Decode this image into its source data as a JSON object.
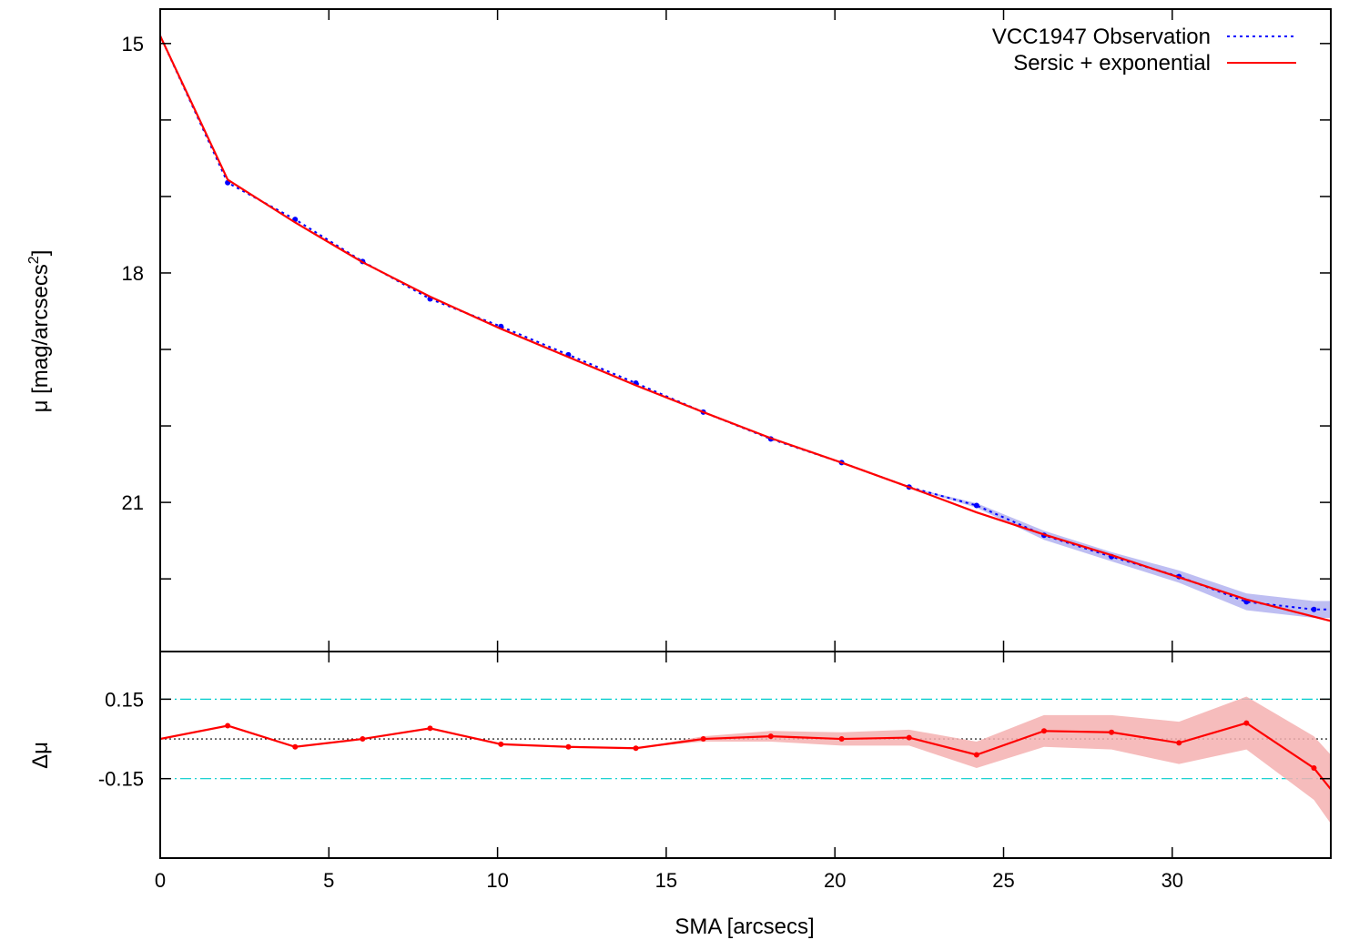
{
  "chart_data": [
    {
      "type": "line",
      "panel": "profile",
      "title": "",
      "xlabel": "SMA [arcsecs]",
      "ylabel": "μ [mag/arcsecs",
      "ylabel_sup": "2",
      "ylabel_close": "]",
      "xlim": [
        0,
        34.7
      ],
      "ylim": [
        22.95,
        14.55
      ],
      "y_inverted": true,
      "xticks": [
        0,
        5,
        10,
        15,
        20,
        25,
        30
      ],
      "yticks_labeled": [
        15,
        18,
        21
      ],
      "yticks_minor": [
        16,
        17,
        19,
        20,
        22
      ],
      "legend_position": "top-right",
      "grid": false,
      "series": [
        {
          "name": "VCC1947 Observation",
          "color": "#0000ff",
          "style": "dotted",
          "band_color": "#b3b3f0",
          "x": [
            0.0,
            2.0,
            4.0,
            6.0,
            8.0,
            10.1,
            12.1,
            14.1,
            16.1,
            18.1,
            20.2,
            22.2,
            24.2,
            26.2,
            28.2,
            30.2,
            32.2,
            34.2,
            34.7
          ],
          "y": [
            14.9,
            16.82,
            17.3,
            17.85,
            18.34,
            18.7,
            19.07,
            19.44,
            19.82,
            20.17,
            20.48,
            20.8,
            21.04,
            21.43,
            21.71,
            21.97,
            22.3,
            22.4,
            22.4
          ],
          "err": [
            0.0,
            0.0,
            0.0,
            0.0,
            0.0,
            0.0,
            0.0,
            0.0,
            0.0,
            0.0,
            0.0,
            0.0,
            0.03,
            0.06,
            0.06,
            0.08,
            0.11,
            0.11,
            0.11
          ]
        },
        {
          "name": "Sersic + exponential",
          "color": "#ff0000",
          "style": "solid",
          "x": [
            0.0,
            2.0,
            4.0,
            6.0,
            8.0,
            10.1,
            12.1,
            14.1,
            16.1,
            18.1,
            20.2,
            22.2,
            24.2,
            26.2,
            28.2,
            30.2,
            32.2,
            34.7
          ],
          "y": [
            14.9,
            16.78,
            17.34,
            17.86,
            18.31,
            18.73,
            19.1,
            19.47,
            19.82,
            20.16,
            20.48,
            20.8,
            21.13,
            21.42,
            21.69,
            21.98,
            22.27,
            22.55
          ]
        }
      ]
    },
    {
      "type": "line",
      "panel": "residual",
      "title": "",
      "xlabel": "SMA [arcsecs]",
      "ylabel": "Δμ",
      "xlim": [
        0,
        34.7
      ],
      "ylim": [
        -0.45,
        0.33
      ],
      "xticks": [
        0,
        5,
        10,
        15,
        20,
        25,
        30
      ],
      "yticks_labeled": [
        0.15,
        -0.15
      ],
      "ytick_labels": [
        "0.15",
        "-0.15"
      ],
      "grid": false,
      "reference_lines": [
        {
          "y": 0.15,
          "color": "#00cccc",
          "style": "dash-dot"
        },
        {
          "y": -0.15,
          "color": "#00cccc",
          "style": "dash-dot"
        },
        {
          "y": 0.0,
          "color": "#000000",
          "style": "dotted"
        }
      ],
      "series": [
        {
          "name": "",
          "color": "#ff0000",
          "style": "solid",
          "band_color": "#f5b0b0",
          "x": [
            0.0,
            2.0,
            4.0,
            6.0,
            8.0,
            10.1,
            12.1,
            14.1,
            16.1,
            18.1,
            20.2,
            22.2,
            24.2,
            26.2,
            28.2,
            30.2,
            32.2,
            34.2,
            34.7
          ],
          "y": [
            0.0,
            0.05,
            -0.03,
            0.0,
            0.04,
            -0.02,
            -0.03,
            -0.035,
            0.0,
            0.01,
            0.0,
            0.005,
            -0.06,
            0.03,
            0.025,
            -0.015,
            0.06,
            -0.11,
            -0.19
          ],
          "err": [
            0.0,
            0.0,
            0.0,
            0.0,
            0.0,
            0.0,
            0.0,
            0.0,
            0.01,
            0.02,
            0.025,
            0.03,
            0.05,
            0.06,
            0.065,
            0.08,
            0.1,
            0.12,
            0.13
          ]
        }
      ]
    }
  ]
}
